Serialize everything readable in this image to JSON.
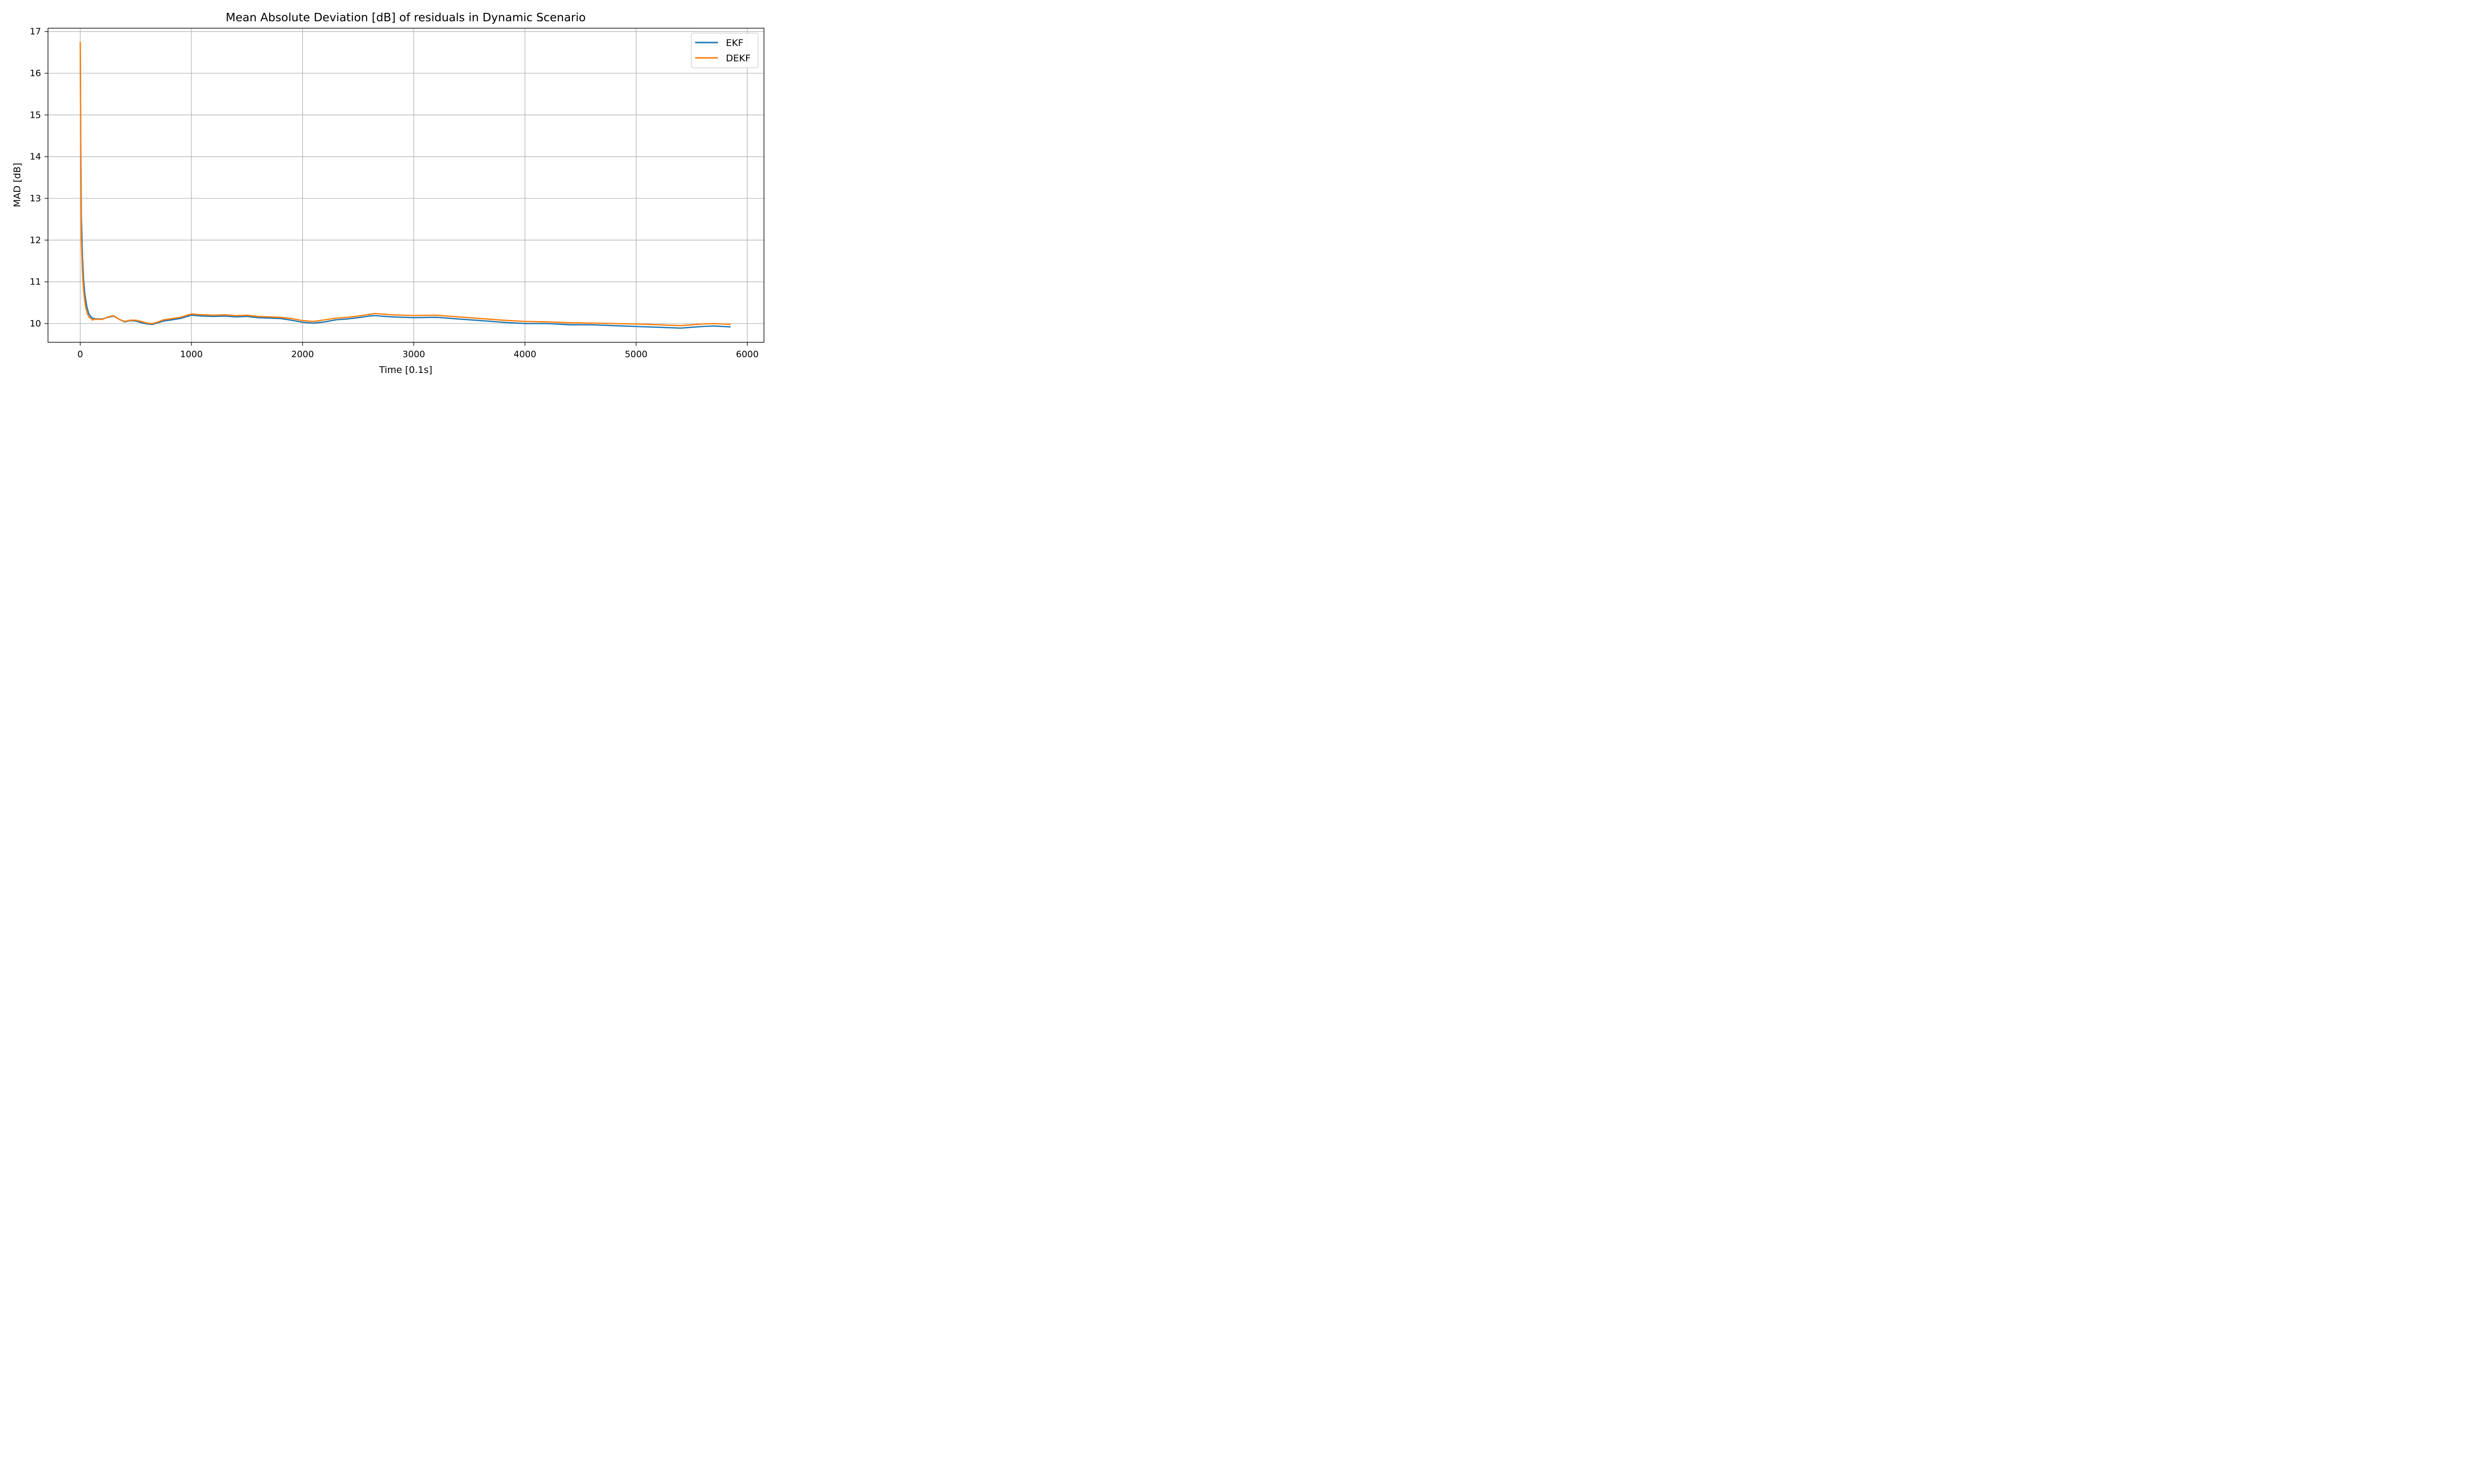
{
  "chart_data": {
    "type": "line",
    "title": "Mean Absolute Deviation [dB] of residuals in Dynamic Scenario",
    "xlabel": "Time [0.1s]",
    "ylabel": "MAD [dB]",
    "xlim": [
      -290,
      6150
    ],
    "ylim": [
      9.55,
      17.08
    ],
    "xticks": [
      0,
      1000,
      2000,
      3000,
      4000,
      5000,
      6000
    ],
    "yticks": [
      10,
      11,
      12,
      13,
      14,
      15,
      16,
      17
    ],
    "xtick_labels": [
      "0",
      "1000",
      "2000",
      "3000",
      "4000",
      "5000",
      "6000"
    ],
    "ytick_labels": [
      "10",
      "11",
      "12",
      "13",
      "14",
      "15",
      "16",
      "17"
    ],
    "grid": true,
    "legend_position": "top-right",
    "series": [
      {
        "name": "EKF",
        "color": "#1f77b4",
        "x": [
          0,
          5,
          10,
          20,
          30,
          40,
          50,
          60,
          70,
          80,
          100,
          120,
          150,
          200,
          250,
          300,
          350,
          400,
          450,
          500,
          550,
          600,
          650,
          700,
          750,
          800,
          900,
          1000,
          1100,
          1200,
          1300,
          1400,
          1500,
          1600,
          1700,
          1800,
          1900,
          2000,
          2100,
          2200,
          2300,
          2400,
          2500,
          2600,
          2650,
          2700,
          2800,
          3000,
          3200,
          3400,
          3600,
          3800,
          4000,
          4200,
          4400,
          4600,
          4800,
          5000,
          5200,
          5400,
          5500,
          5600,
          5700,
          5850
        ],
        "values": [
          16.75,
          14.2,
          12.6,
          11.6,
          11.05,
          10.75,
          10.55,
          10.4,
          10.3,
          10.22,
          10.15,
          10.12,
          10.11,
          10.11,
          10.15,
          10.18,
          10.1,
          10.04,
          10.07,
          10.06,
          10.02,
          9.99,
          9.98,
          10.02,
          10.06,
          10.08,
          10.12,
          10.2,
          10.18,
          10.17,
          10.18,
          10.16,
          10.17,
          10.14,
          10.13,
          10.12,
          10.08,
          10.03,
          10.01,
          10.04,
          10.09,
          10.11,
          10.14,
          10.18,
          10.19,
          10.18,
          10.16,
          10.14,
          10.15,
          10.11,
          10.07,
          10.03,
          10.0,
          10.0,
          9.97,
          9.97,
          9.95,
          9.93,
          9.91,
          9.89,
          9.91,
          9.93,
          9.94,
          9.92
        ]
      },
      {
        "name": "DEKF",
        "color": "#ff7f0e",
        "x": [
          0,
          5,
          10,
          20,
          30,
          40,
          50,
          60,
          70,
          80,
          100,
          110,
          120,
          150,
          200,
          250,
          300,
          350,
          400,
          450,
          500,
          550,
          600,
          650,
          700,
          750,
          800,
          900,
          1000,
          1100,
          1200,
          1300,
          1400,
          1500,
          1600,
          1700,
          1800,
          1900,
          2000,
          2100,
          2200,
          2300,
          2400,
          2500,
          2600,
          2650,
          2700,
          2800,
          3000,
          3200,
          3400,
          3600,
          3800,
          4000,
          4200,
          4400,
          4600,
          4800,
          5000,
          5200,
          5400,
          5500,
          5600,
          5700,
          5850
        ],
        "values": [
          16.75,
          13.6,
          12.0,
          11.2,
          10.8,
          10.55,
          10.38,
          10.27,
          10.2,
          10.15,
          10.12,
          10.08,
          10.1,
          10.1,
          10.1,
          10.16,
          10.19,
          10.1,
          10.05,
          10.08,
          10.08,
          10.05,
          10.01,
          10.0,
          10.04,
          10.09,
          10.11,
          10.15,
          10.23,
          10.21,
          10.2,
          10.21,
          10.19,
          10.2,
          10.17,
          10.16,
          10.15,
          10.12,
          10.07,
          10.05,
          10.09,
          10.13,
          10.15,
          10.18,
          10.22,
          10.24,
          10.23,
          10.21,
          10.19,
          10.2,
          10.16,
          10.12,
          10.08,
          10.05,
          10.04,
          10.02,
          10.01,
          10.0,
          9.99,
          9.97,
          9.95,
          9.97,
          9.99,
          10.0,
          9.98
        ]
      }
    ]
  }
}
